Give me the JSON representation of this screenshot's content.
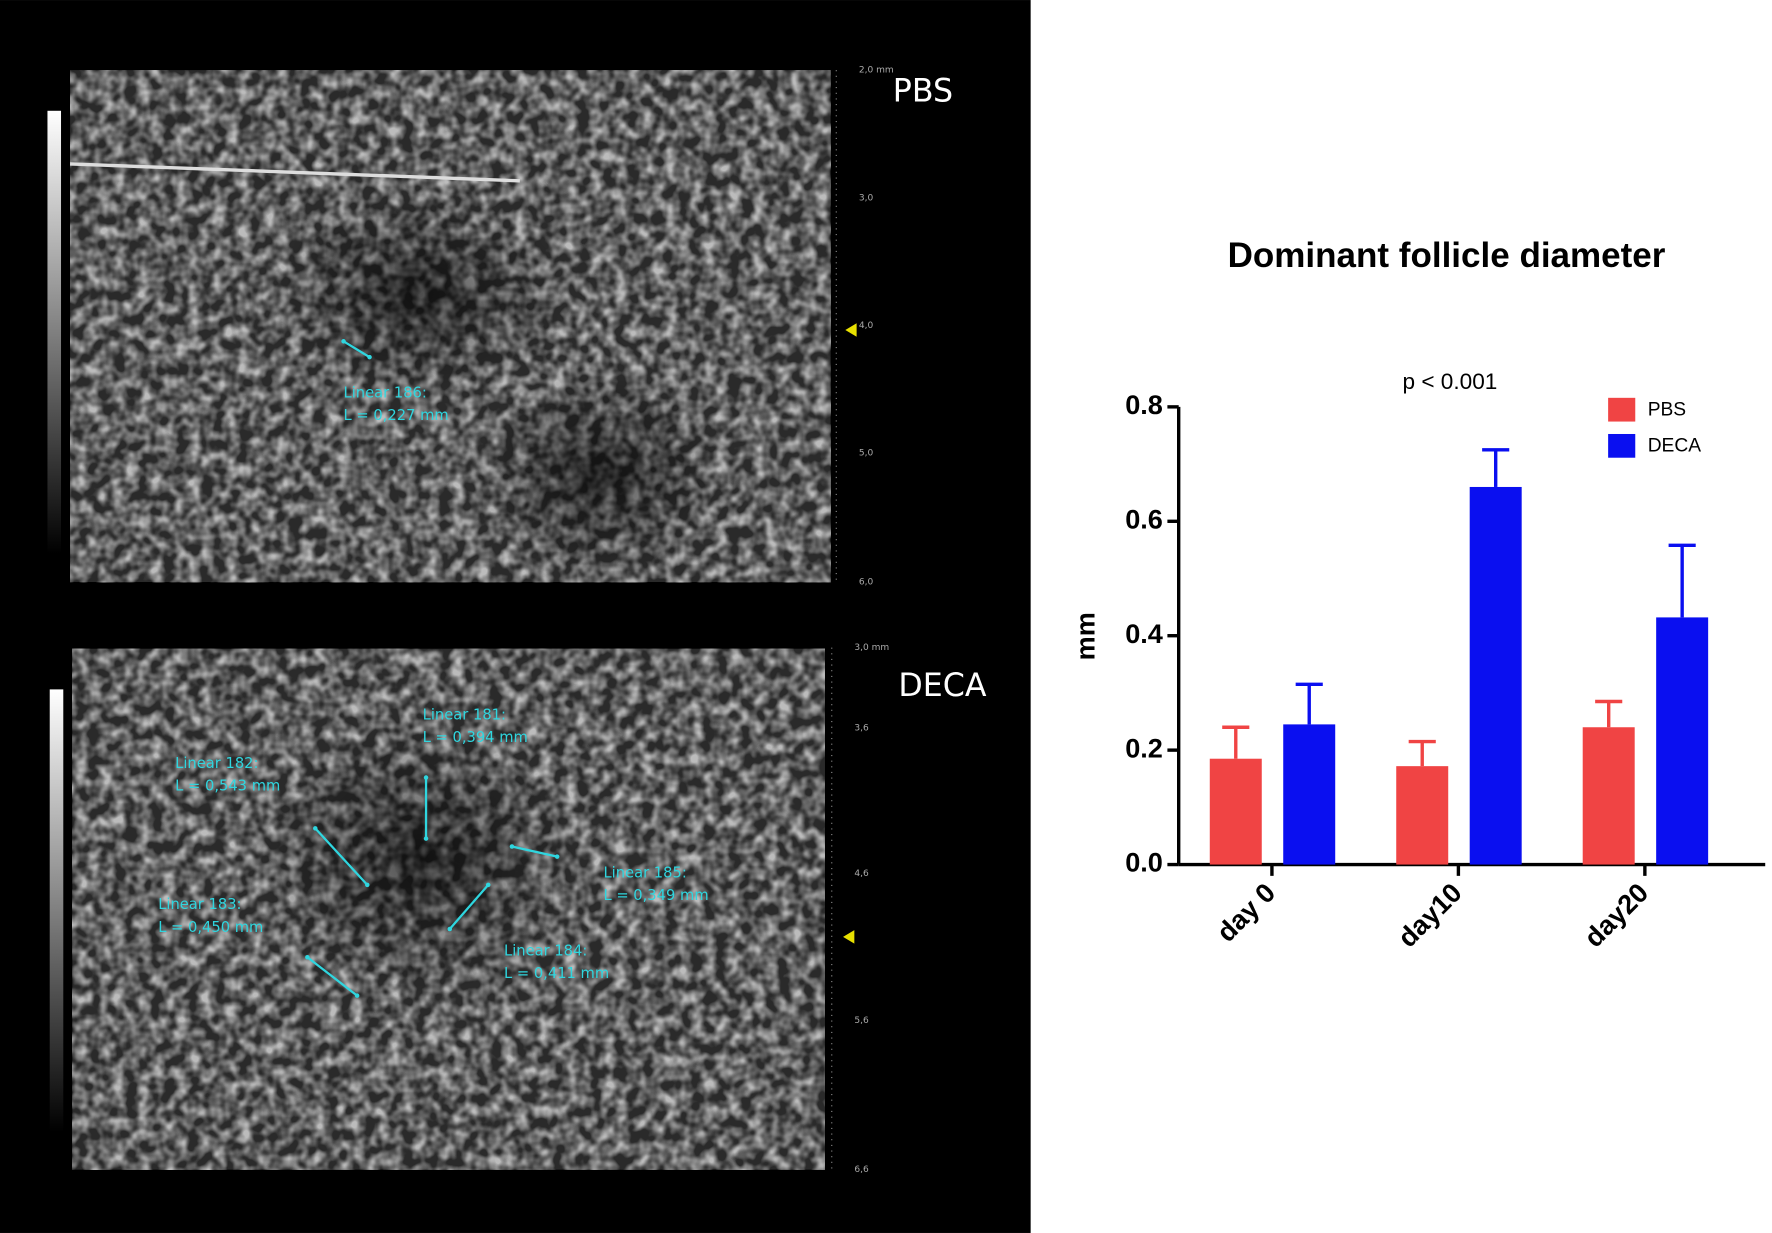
{
  "chart_data": {
    "type": "bar",
    "title": "Dominant follicle diameter",
    "y_label": "mm",
    "annotation": "p < 0.001",
    "categories": [
      "day 0",
      "day10",
      "day20"
    ],
    "series": [
      {
        "name": "PBS",
        "color": "#f04444",
        "values": [
          0.185,
          0.172,
          0.24
        ],
        "errors": [
          0.055,
          0.043,
          0.045
        ]
      },
      {
        "name": "DECA",
        "color": "#0a0ff0",
        "values": [
          0.245,
          0.66,
          0.432
        ],
        "errors": [
          0.07,
          0.065,
          0.126
        ]
      }
    ],
    "ylim": [
      0,
      0.8
    ],
    "yticks": [
      {
        "value": 0,
        "label": "0.0"
      },
      0.2,
      0.4,
      0.6,
      0.8
    ],
    "legend": "top-right"
  },
  "images": [
    {
      "label": "PBS",
      "depth_ticks": [
        "2,0 mm",
        "3,0",
        "4,0",
        "5,0",
        "6,0"
      ],
      "measurements": [
        {
          "name": "Linear 186:",
          "value": "L = 0,227 mm"
        }
      ]
    },
    {
      "label": "DECA",
      "depth_ticks": [
        "3,0 mm",
        "3,6",
        "4,6",
        "5,6",
        "6,6"
      ],
      "measurements": [
        {
          "name": "Linear 181:",
          "value": "L = 0,394 mm"
        },
        {
          "name": "Linear 182:",
          "value": "L = 0,543 mm"
        },
        {
          "name": "Linear 183:",
          "value": "L = 0,450 mm"
        },
        {
          "name": "Linear 184:",
          "value": "L = 0,411 mm"
        },
        {
          "name": "Linear 185:",
          "value": "L = 0,349 mm"
        }
      ]
    }
  ]
}
